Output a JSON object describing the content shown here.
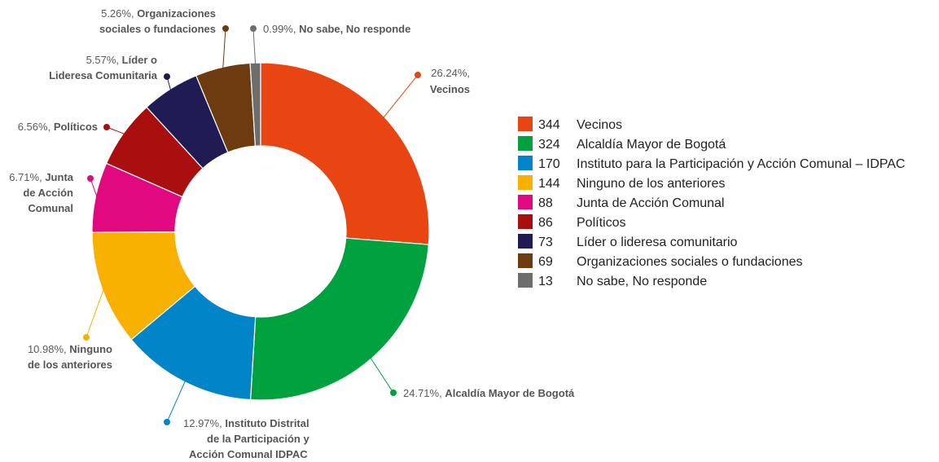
{
  "chart_data": {
    "type": "pie",
    "donut": true,
    "legend_position": "right",
    "categories": [
      "Vecinos",
      "Alcaldía Mayor de Bogotá",
      "Instituto para la Participación y Acción Comunal – IDPAC",
      "Ninguno de los anteriores",
      "Junta de Acción Comunal",
      "Políticos",
      "Líder o lideresa comunitario",
      "Organizaciones sociales o fundaciones",
      "No sabe, No responde"
    ],
    "values": [
      344,
      324,
      170,
      144,
      88,
      86,
      73,
      69,
      13
    ],
    "percent_labels": [
      "26.24%,",
      "24.71%,",
      "12.97%,",
      "10.98%,",
      "6.71%,",
      "6.56%,",
      "5.57%,",
      "5.26%,",
      "0.99%,"
    ],
    "slice_labels": [
      [
        "Vecinos"
      ],
      [
        "Alcaldía Mayor de Bogotá"
      ],
      [
        "Instituto Distrital",
        "de la Participación y",
        "Acción Comunal IDPAC"
      ],
      [
        "Ninguno",
        "de los anteriores"
      ],
      [
        "Junta",
        "de Acción",
        "Comunal"
      ],
      [
        "Políticos"
      ],
      [
        "Líder o",
        "Lideresa Comunitaria"
      ],
      [
        "Organizaciones",
        "sociales o fundaciones"
      ],
      [
        "No sabe, No responde"
      ]
    ],
    "colors": [
      "#e84512",
      "#00a13f",
      "#0284c8",
      "#f8b100",
      "#e0097f",
      "#a80f0e",
      "#211b54",
      "#6e3a10",
      "#6d6d6d"
    ]
  }
}
